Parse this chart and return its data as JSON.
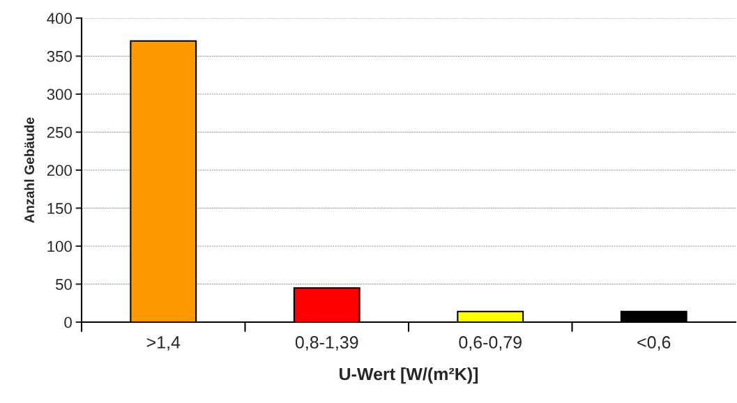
{
  "chart_data": {
    "type": "bar",
    "xlabel": "U-Wert [W/(m²K)]",
    "ylabel": "Anzahl Gebäude",
    "categories": [
      ">1,4",
      "0,8-1,39",
      "0,6-0,79",
      "<0,6"
    ],
    "values": [
      370,
      45,
      14,
      14
    ],
    "colors": [
      "#ff9900",
      "#ff0000",
      "#ffff00",
      "#000000"
    ],
    "ylim": [
      0,
      400
    ],
    "yticks": [
      0,
      50,
      100,
      150,
      200,
      250,
      300,
      350,
      400
    ],
    "grid": "y",
    "legend": false
  }
}
